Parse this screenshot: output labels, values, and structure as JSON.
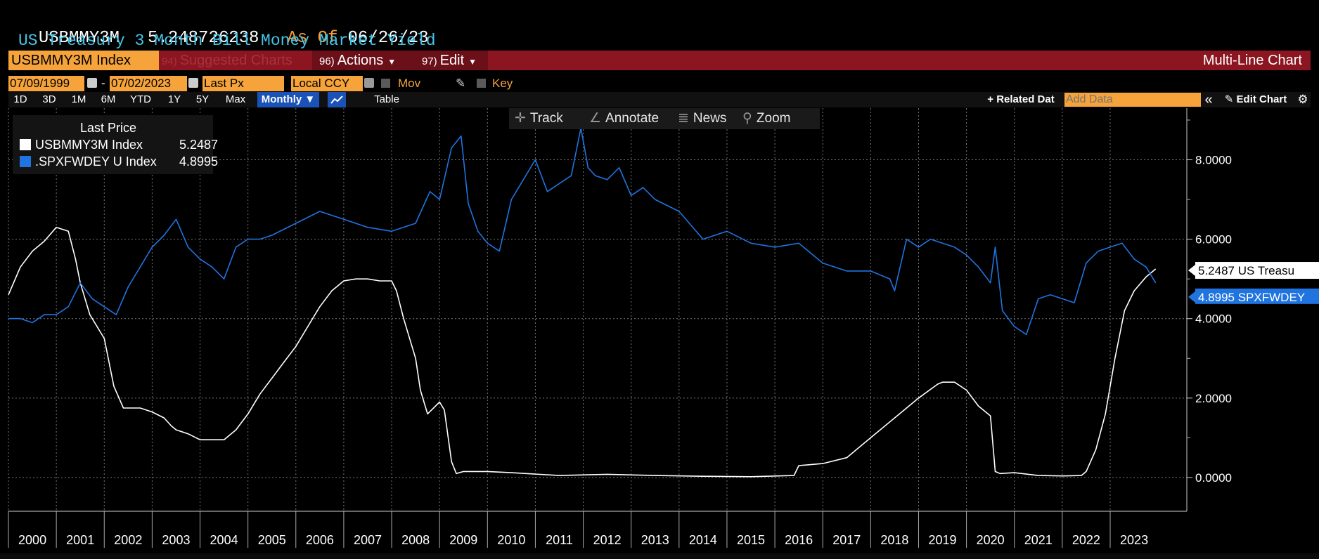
{
  "header": {
    "ticker": "USBMMY3M",
    "last_value": "5.248726238",
    "as_of_label": "As Of",
    "as_of_date": "06/26/23",
    "description": "US Treasury 3 Month Bill Money Market Yield"
  },
  "toolbar": {
    "security": "USBMMY3M Index",
    "suggested_num": "94)",
    "suggested_label": "Suggested Charts",
    "actions_num": "96)",
    "actions_label": "Actions",
    "edit_num": "97)",
    "edit_label": "Edit",
    "chart_type": "Multi-Line Chart"
  },
  "settings": {
    "start_date": "07/09/1999",
    "end_date": "07/02/2023",
    "dash": "-",
    "price_field": "Last Px",
    "currency": "Local CCY",
    "mov_avgs": "Mov Avgs",
    "key_events": "Key Events"
  },
  "periods": {
    "items": [
      "1D",
      "3D",
      "1M",
      "6M",
      "YTD",
      "1Y",
      "5Y",
      "Max"
    ],
    "frequency": "Monthly",
    "table": "Table",
    "related_data": "+ Related Dat",
    "add_data_placeholder": "Add Data",
    "edit_chart": "Edit Chart"
  },
  "chart_tools": {
    "track": "Track",
    "annotate": "Annotate",
    "news": "News",
    "zoom": "Zoom"
  },
  "legend": {
    "title": "Last Price",
    "items": [
      {
        "name": "USBMMY3M Index",
        "value": "5.2487",
        "color": "#ffffff"
      },
      {
        "name": ".SPXFWDEY U Index",
        "value": "4.8995",
        "color": "#1f74e0"
      }
    ]
  },
  "colors": {
    "series_white": "#ffffff",
    "series_blue": "#1f74e0",
    "toolbar_red": "#8b1520",
    "accent_orange": "#f5a33a",
    "header_blue": "#43c5e8"
  },
  "chart_data": {
    "type": "line",
    "xlabel": "",
    "ylabel": "",
    "x_ticks": [
      "2000",
      "2001",
      "2002",
      "2003",
      "2004",
      "2005",
      "2006",
      "2007",
      "2008",
      "2009",
      "2010",
      "2011",
      "2012",
      "2013",
      "2014",
      "2015",
      "2016",
      "2017",
      "2018",
      "2019",
      "2020",
      "2021",
      "2022",
      "2023"
    ],
    "y_ticks": [
      "0.0000",
      "2.0000",
      "4.0000",
      "6.0000",
      "8.0000"
    ],
    "ylim": [
      -0.85,
      9.3
    ],
    "xlim": [
      1999.5,
      2024.1
    ],
    "grid": true,
    "legend_position": "top-left",
    "last_value_labels": [
      {
        "text": "5.2487 US Treasu",
        "series": "USBMMY3M Index"
      },
      {
        "text": "4.8995 SPXFWDEY",
        "series": ".SPXFWDEY U Index"
      }
    ],
    "series": [
      {
        "name": "USBMMY3M Index",
        "color": "#ffffff",
        "x": [
          1999.5,
          1999.75,
          2000.0,
          2000.25,
          2000.5,
          2000.75,
          2000.9,
          2001.0,
          2001.2,
          2001.5,
          2001.7,
          2001.9,
          2002.0,
          2002.25,
          2002.5,
          2002.75,
          2002.9,
          2003.0,
          2003.25,
          2003.5,
          2003.75,
          2004.0,
          2004.25,
          2004.5,
          2004.75,
          2005.0,
          2005.25,
          2005.5,
          2005.75,
          2006.0,
          2006.25,
          2006.5,
          2006.75,
          2007.0,
          2007.25,
          2007.5,
          2007.6,
          2007.75,
          2008.0,
          2008.1,
          2008.25,
          2008.5,
          2008.6,
          2008.75,
          2008.85,
          2009.0,
          2009.5,
          2010.0,
          2011.0,
          2012.0,
          2013.0,
          2014.0,
          2015.0,
          2015.9,
          2016.0,
          2016.5,
          2017.0,
          2017.5,
          2018.0,
          2018.5,
          2018.9,
          2019.0,
          2019.25,
          2019.5,
          2019.75,
          2020.0,
          2020.1,
          2020.2,
          2020.5,
          2021.0,
          2021.5,
          2021.9,
          2022.0,
          2022.2,
          2022.4,
          2022.6,
          2022.8,
          2023.0,
          2023.25,
          2023.45
        ],
        "values": [
          4.6,
          5.3,
          5.7,
          5.95,
          6.3,
          6.2,
          5.5,
          4.9,
          4.1,
          3.5,
          2.3,
          1.75,
          1.75,
          1.75,
          1.65,
          1.5,
          1.3,
          1.2,
          1.1,
          0.95,
          0.95,
          0.95,
          1.2,
          1.6,
          2.1,
          2.5,
          2.9,
          3.3,
          3.8,
          4.3,
          4.7,
          4.95,
          5.0,
          5.0,
          4.95,
          4.95,
          4.7,
          4.0,
          3.0,
          2.2,
          1.6,
          1.9,
          1.7,
          0.4,
          0.1,
          0.15,
          0.15,
          0.12,
          0.05,
          0.08,
          0.05,
          0.03,
          0.02,
          0.05,
          0.3,
          0.35,
          0.5,
          1.0,
          1.5,
          2.0,
          2.35,
          2.4,
          2.4,
          2.2,
          1.8,
          1.55,
          0.15,
          0.1,
          0.12,
          0.05,
          0.04,
          0.05,
          0.15,
          0.7,
          1.6,
          3.0,
          4.2,
          4.7,
          5.05,
          5.25
        ]
      },
      {
        "name": ".SPXFWDEY U Index",
        "color": "#1f74e0",
        "x": [
          1999.5,
          1999.75,
          2000.0,
          2000.25,
          2000.5,
          2000.75,
          2001.0,
          2001.25,
          2001.5,
          2001.75,
          2002.0,
          2002.25,
          2002.5,
          2002.75,
          2003.0,
          2003.25,
          2003.5,
          2003.75,
          2004.0,
          2004.25,
          2004.5,
          2004.75,
          2005.0,
          2005.5,
          2006.0,
          2006.5,
          2007.0,
          2007.5,
          2008.0,
          2008.3,
          2008.5,
          2008.75,
          2008.95,
          2009.1,
          2009.3,
          2009.5,
          2009.75,
          2010.0,
          2010.25,
          2010.5,
          2010.75,
          2011.0,
          2011.25,
          2011.45,
          2011.6,
          2011.75,
          2012.0,
          2012.25,
          2012.5,
          2012.75,
          2013.0,
          2013.5,
          2014.0,
          2014.5,
          2015.0,
          2015.5,
          2016.0,
          2016.5,
          2017.0,
          2017.5,
          2017.9,
          2018.0,
          2018.25,
          2018.5,
          2018.75,
          2019.0,
          2019.25,
          2019.5,
          2019.75,
          2020.0,
          2020.1,
          2020.25,
          2020.5,
          2020.75,
          2021.0,
          2021.25,
          2021.5,
          2021.75,
          2022.0,
          2022.25,
          2022.5,
          2022.75,
          2023.0,
          2023.25,
          2023.45
        ],
        "values": [
          4.0,
          4.0,
          3.9,
          4.1,
          4.1,
          4.3,
          4.9,
          4.5,
          4.3,
          4.1,
          4.8,
          5.3,
          5.8,
          6.1,
          6.5,
          5.8,
          5.5,
          5.3,
          5.0,
          5.8,
          6.0,
          6.0,
          6.1,
          6.4,
          6.7,
          6.5,
          6.3,
          6.2,
          6.4,
          7.2,
          7.0,
          8.3,
          8.6,
          6.9,
          6.2,
          5.9,
          5.7,
          7.0,
          7.5,
          8.0,
          7.2,
          7.4,
          7.6,
          8.8,
          7.8,
          7.6,
          7.5,
          7.8,
          7.1,
          7.3,
          7.0,
          6.7,
          6.0,
          6.2,
          5.9,
          5.8,
          5.9,
          5.4,
          5.2,
          5.2,
          5.0,
          4.7,
          6.0,
          5.8,
          6.0,
          5.9,
          5.8,
          5.6,
          5.3,
          4.9,
          5.8,
          4.2,
          3.8,
          3.6,
          4.5,
          4.6,
          4.5,
          4.4,
          5.4,
          5.7,
          5.8,
          5.9,
          5.5,
          5.3,
          4.9
        ]
      }
    ]
  }
}
